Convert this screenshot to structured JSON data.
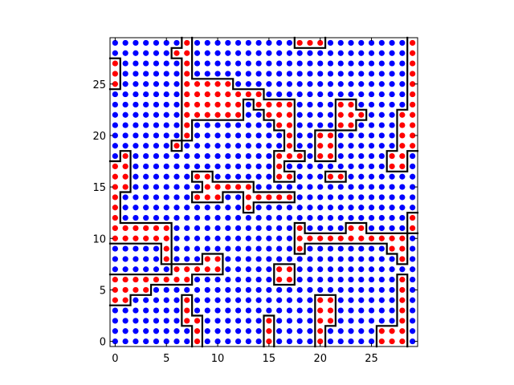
{
  "chart_data": {
    "type": "scatter",
    "title": "",
    "xlabel": "",
    "ylabel": "",
    "xlim": [
      -0.5,
      29.5
    ],
    "ylim": [
      -0.5,
      29.5
    ],
    "xticks": [
      0,
      5,
      10,
      15,
      20,
      25
    ],
    "yticks": [
      0,
      5,
      10,
      15,
      20,
      25
    ],
    "grid": false,
    "legend": "none",
    "colors": {
      "class_a": "#0000ff",
      "class_b": "#ff0000",
      "boundary": "#000000"
    },
    "grid_size": 30,
    "series": [
      {
        "label_value": 1,
        "color": "#ff0000",
        "points": [
          [
            7,
            29
          ],
          [
            18,
            29
          ],
          [
            19,
            29
          ],
          [
            20,
            29
          ],
          [
            29,
            29
          ],
          [
            6,
            28
          ],
          [
            7,
            28
          ],
          [
            29,
            28
          ],
          [
            0,
            27
          ],
          [
            7,
            27
          ],
          [
            29,
            27
          ],
          [
            0,
            26
          ],
          [
            7,
            26
          ],
          [
            29,
            26
          ],
          [
            0,
            25
          ],
          [
            7,
            25
          ],
          [
            8,
            25
          ],
          [
            9,
            25
          ],
          [
            10,
            25
          ],
          [
            11,
            25
          ],
          [
            29,
            25
          ],
          [
            7,
            24
          ],
          [
            8,
            24
          ],
          [
            9,
            24
          ],
          [
            10,
            24
          ],
          [
            11,
            24
          ],
          [
            12,
            24
          ],
          [
            13,
            24
          ],
          [
            14,
            24
          ],
          [
            29,
            24
          ],
          [
            7,
            23
          ],
          [
            8,
            23
          ],
          [
            9,
            23
          ],
          [
            10,
            23
          ],
          [
            11,
            23
          ],
          [
            12,
            23
          ],
          [
            14,
            23
          ],
          [
            15,
            23
          ],
          [
            16,
            23
          ],
          [
            17,
            23
          ],
          [
            22,
            23
          ],
          [
            23,
            23
          ],
          [
            29,
            23
          ],
          [
            7,
            22
          ],
          [
            8,
            22
          ],
          [
            9,
            22
          ],
          [
            10,
            22
          ],
          [
            11,
            22
          ],
          [
            12,
            22
          ],
          [
            15,
            22
          ],
          [
            16,
            22
          ],
          [
            17,
            22
          ],
          [
            22,
            22
          ],
          [
            23,
            22
          ],
          [
            24,
            22
          ],
          [
            28,
            22
          ],
          [
            29,
            22
          ],
          [
            7,
            21
          ],
          [
            16,
            21
          ],
          [
            17,
            21
          ],
          [
            22,
            21
          ],
          [
            23,
            21
          ],
          [
            28,
            21
          ],
          [
            29,
            21
          ],
          [
            7,
            20
          ],
          [
            17,
            20
          ],
          [
            20,
            20
          ],
          [
            21,
            20
          ],
          [
            28,
            20
          ],
          [
            29,
            20
          ],
          [
            6,
            19
          ],
          [
            17,
            19
          ],
          [
            20,
            19
          ],
          [
            21,
            19
          ],
          [
            28,
            19
          ],
          [
            29,
            19
          ],
          [
            1,
            18
          ],
          [
            16,
            18
          ],
          [
            17,
            18
          ],
          [
            18,
            18
          ],
          [
            20,
            18
          ],
          [
            21,
            18
          ],
          [
            27,
            18
          ],
          [
            28,
            18
          ],
          [
            0,
            17
          ],
          [
            1,
            17
          ],
          [
            16,
            17
          ],
          [
            27,
            17
          ],
          [
            28,
            17
          ],
          [
            0,
            16
          ],
          [
            1,
            16
          ],
          [
            8,
            16
          ],
          [
            9,
            16
          ],
          [
            16,
            16
          ],
          [
            17,
            16
          ],
          [
            21,
            16
          ],
          [
            22,
            16
          ],
          [
            0,
            15
          ],
          [
            1,
            15
          ],
          [
            9,
            15
          ],
          [
            10,
            15
          ],
          [
            11,
            15
          ],
          [
            12,
            15
          ],
          [
            13,
            15
          ],
          [
            0,
            14
          ],
          [
            8,
            14
          ],
          [
            9,
            14
          ],
          [
            10,
            14
          ],
          [
            13,
            14
          ],
          [
            14,
            14
          ],
          [
            15,
            14
          ],
          [
            16,
            14
          ],
          [
            17,
            14
          ],
          [
            0,
            13
          ],
          [
            13,
            13
          ],
          [
            0,
            12
          ],
          [
            29,
            12
          ],
          [
            0,
            11
          ],
          [
            1,
            11
          ],
          [
            2,
            11
          ],
          [
            3,
            11
          ],
          [
            4,
            11
          ],
          [
            5,
            11
          ],
          [
            18,
            11
          ],
          [
            23,
            11
          ],
          [
            24,
            11
          ],
          [
            29,
            11
          ],
          [
            0,
            10
          ],
          [
            1,
            10
          ],
          [
            2,
            10
          ],
          [
            3,
            10
          ],
          [
            4,
            10
          ],
          [
            5,
            10
          ],
          [
            18,
            10
          ],
          [
            19,
            10
          ],
          [
            20,
            10
          ],
          [
            21,
            10
          ],
          [
            22,
            10
          ],
          [
            23,
            10
          ],
          [
            24,
            10
          ],
          [
            25,
            10
          ],
          [
            26,
            10
          ],
          [
            27,
            10
          ],
          [
            28,
            10
          ],
          [
            5,
            9
          ],
          [
            18,
            9
          ],
          [
            27,
            9
          ],
          [
            28,
            9
          ],
          [
            5,
            8
          ],
          [
            9,
            8
          ],
          [
            10,
            8
          ],
          [
            28,
            8
          ],
          [
            6,
            7
          ],
          [
            7,
            7
          ],
          [
            8,
            7
          ],
          [
            9,
            7
          ],
          [
            10,
            7
          ],
          [
            16,
            7
          ],
          [
            17,
            7
          ],
          [
            0,
            6
          ],
          [
            1,
            6
          ],
          [
            2,
            6
          ],
          [
            3,
            6
          ],
          [
            4,
            6
          ],
          [
            5,
            6
          ],
          [
            6,
            6
          ],
          [
            7,
            6
          ],
          [
            16,
            6
          ],
          [
            17,
            6
          ],
          [
            28,
            6
          ],
          [
            0,
            5
          ],
          [
            1,
            5
          ],
          [
            2,
            5
          ],
          [
            3,
            5
          ],
          [
            28,
            5
          ],
          [
            0,
            4
          ],
          [
            1,
            4
          ],
          [
            7,
            4
          ],
          [
            20,
            4
          ],
          [
            21,
            4
          ],
          [
            28,
            4
          ],
          [
            7,
            3
          ],
          [
            20,
            3
          ],
          [
            21,
            3
          ],
          [
            28,
            3
          ],
          [
            7,
            2
          ],
          [
            8,
            2
          ],
          [
            15,
            2
          ],
          [
            20,
            2
          ],
          [
            21,
            2
          ],
          [
            28,
            2
          ],
          [
            8,
            1
          ],
          [
            15,
            1
          ],
          [
            20,
            1
          ],
          [
            26,
            1
          ],
          [
            27,
            1
          ],
          [
            28,
            1
          ],
          [
            8,
            0
          ],
          [
            15,
            0
          ],
          [
            20,
            0
          ],
          [
            26,
            0
          ],
          [
            27,
            0
          ],
          [
            28,
            0
          ]
        ]
      },
      {
        "label_value": 0,
        "color": "#0000ff",
        "note": "all remaining grid points in 0..29 x 0..29"
      }
    ]
  }
}
